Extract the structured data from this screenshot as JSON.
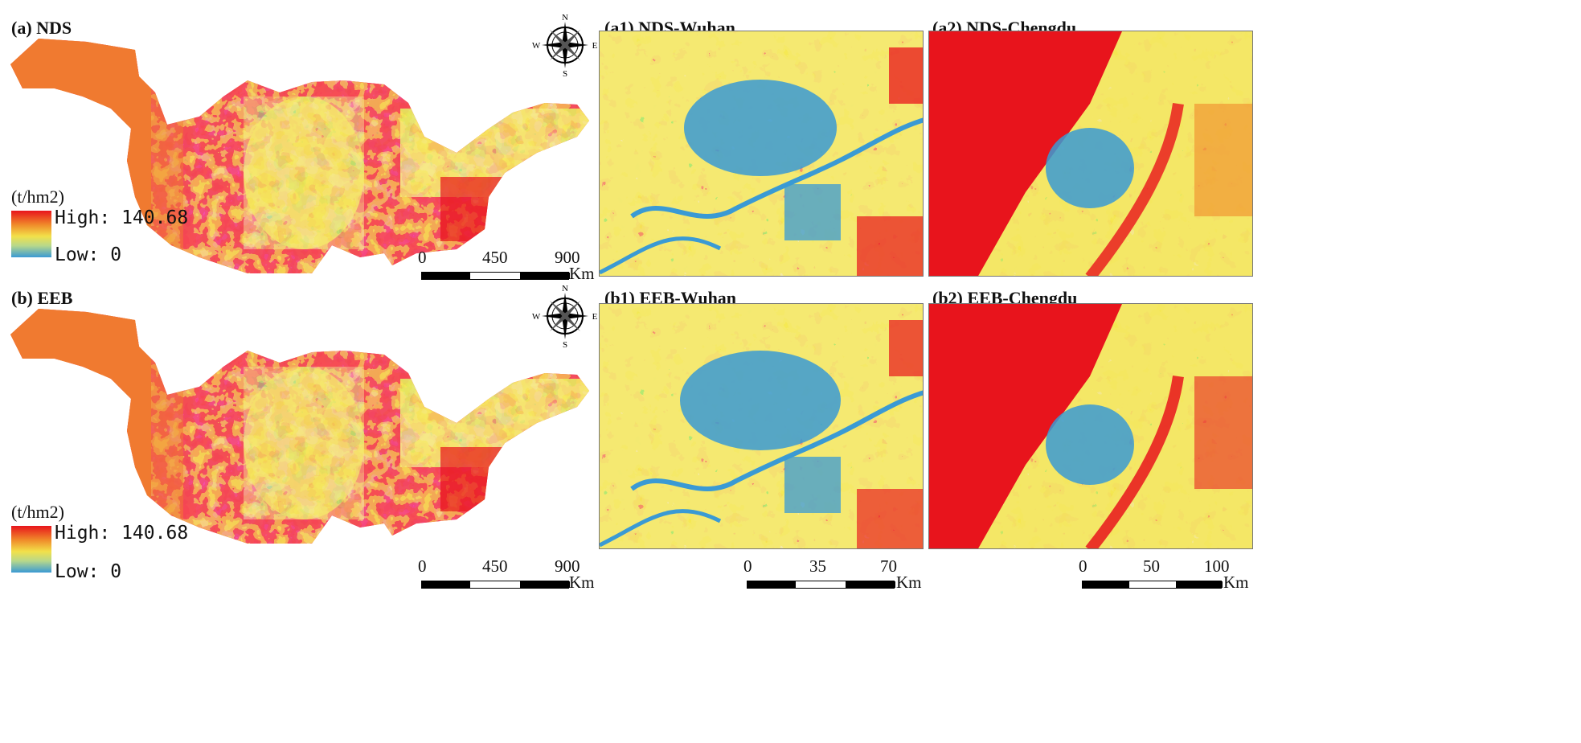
{
  "colors": {
    "high": "#e8141c",
    "mid_high": "#f08a2a",
    "mid": "#f2e14a",
    "mid_low": "#b8d88a",
    "low": "#3a9ad4"
  },
  "panels": {
    "a": {
      "title": "(a) NDS"
    },
    "b": {
      "title": "(b) EEB"
    },
    "a1": {
      "title": "(a1) NDS-Wuhan"
    },
    "a2": {
      "title": "(a2) NDS-Chengdu"
    },
    "b1": {
      "title": "(b1) EEB-Wuhan"
    },
    "b2": {
      "title": "(b2) EEB-Chengdu"
    }
  },
  "legend": {
    "unit": "(t/hm2)",
    "high": "High: 140.68",
    "low": "Low: 0"
  },
  "compass": {
    "n": "N",
    "s": "S",
    "e": "E",
    "w": "W",
    "icon": "north-arrow-icon"
  },
  "scalebars": {
    "basin": {
      "ticks": [
        "0",
        "450",
        "900"
      ],
      "unit": "Km"
    },
    "wuhan": {
      "ticks": [
        "0",
        "35",
        "70"
      ],
      "unit": "Km"
    },
    "chengdu": {
      "ticks": [
        "0",
        "50",
        "100"
      ],
      "unit": "Km"
    }
  }
}
